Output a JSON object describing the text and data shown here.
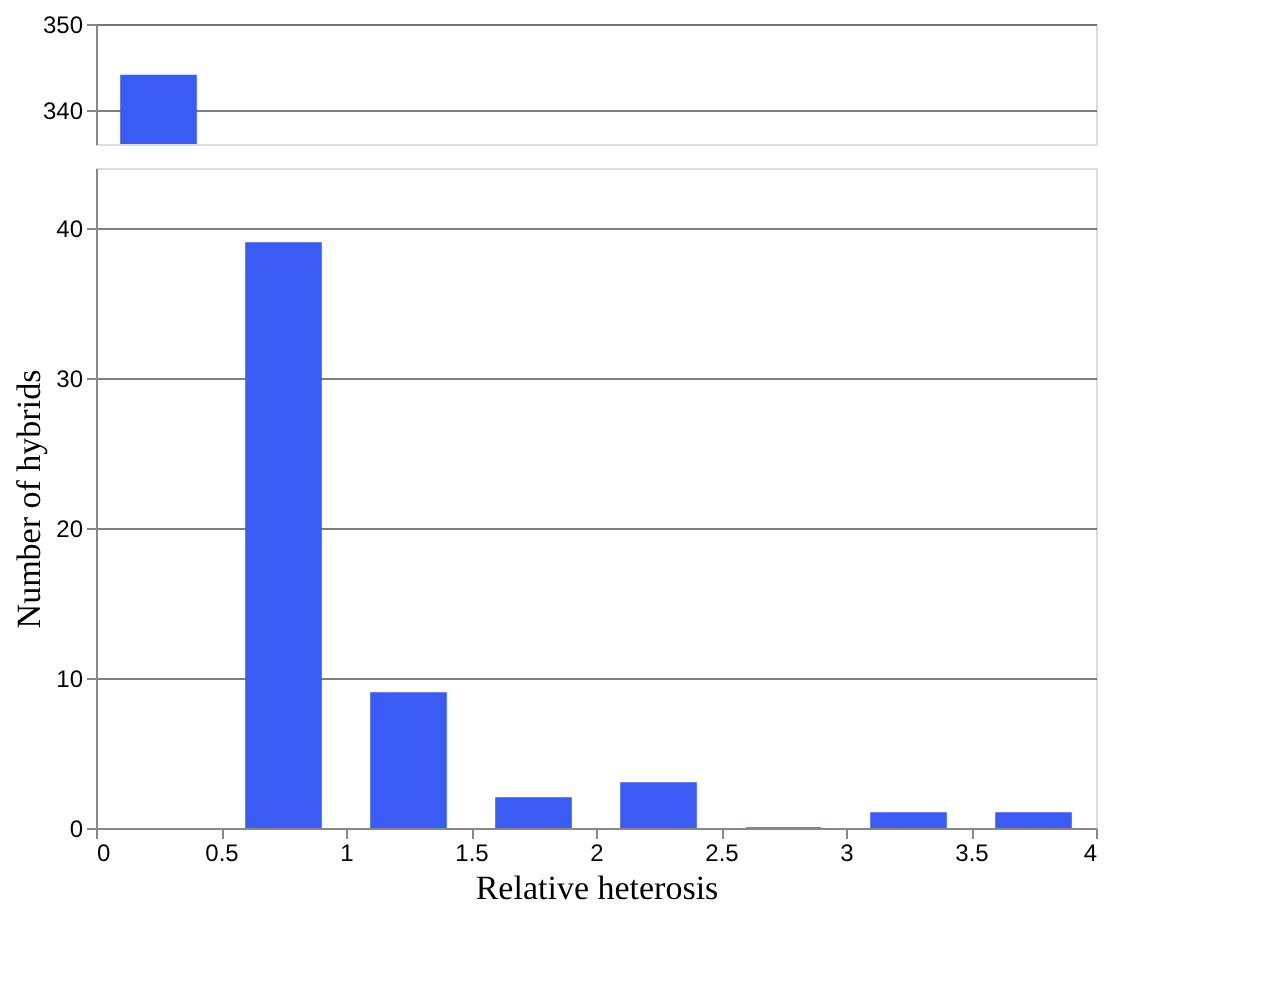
{
  "chart_data": [
    {
      "type": "histogram",
      "bins": [
        0,
        0.5,
        1,
        1.5,
        2,
        2.5,
        3,
        3.5,
        4
      ],
      "values": [
        344,
        null,
        null,
        null,
        null,
        null,
        null,
        null
      ],
      "color": "#3a5cf5",
      "xlim": [
        0,
        4
      ],
      "ylim": [
        336,
        350
      ],
      "yticks": [
        340,
        350
      ],
      "grid": "y",
      "tick_labels": "y"
    },
    {
      "type": "histogram",
      "bins": [
        0,
        0.5,
        1,
        1.5,
        2,
        2.5,
        3,
        3.5,
        4
      ],
      "values": [
        null,
        39,
        9,
        2,
        3,
        0,
        1,
        1
      ],
      "color": "#3a5cf5",
      "xlim": [
        0,
        4
      ],
      "xticks": [
        0,
        0.5,
        1,
        1.5,
        2,
        2.5,
        3,
        3.5,
        4
      ],
      "ylim": [
        0,
        44
      ],
      "yticks": [
        0,
        10,
        20,
        30,
        40
      ],
      "grid": "y",
      "xlabel": "Relative heterosis",
      "ylabel": "Number of hybrids"
    }
  ]
}
